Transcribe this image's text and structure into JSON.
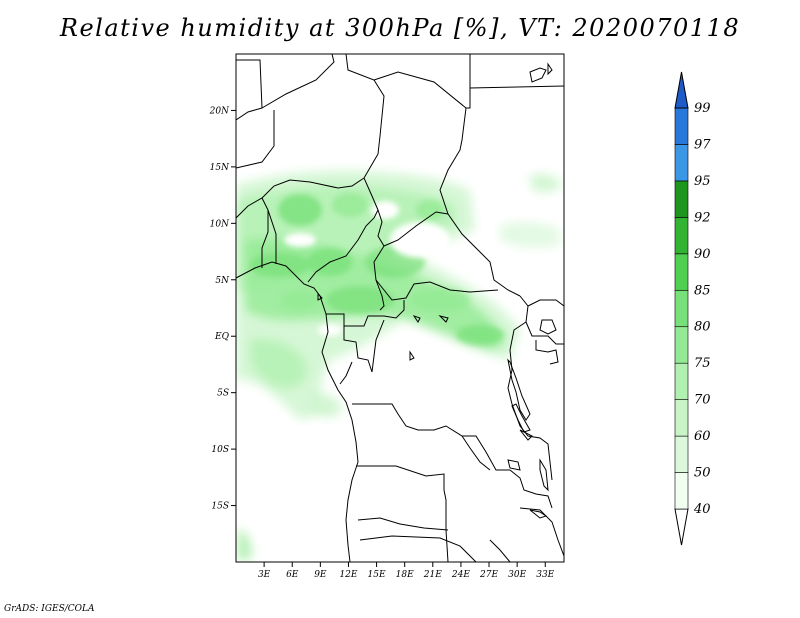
{
  "title": "Relative humidity at 300hPa [%], VT: 2020070118",
  "credit": "GrADS: IGES/COLA",
  "map": {
    "lon_range": [
      0,
      35
    ],
    "lat_range": [
      -20,
      25
    ],
    "lat_ticks": [
      {
        "value": 20,
        "label": "20N"
      },
      {
        "value": 15,
        "label": "15N"
      },
      {
        "value": 10,
        "label": "10N"
      },
      {
        "value": 5,
        "label": "5N"
      },
      {
        "value": 0,
        "label": "EQ"
      },
      {
        "value": -5,
        "label": "5S"
      },
      {
        "value": -10,
        "label": "10S"
      },
      {
        "value": -15,
        "label": "15S"
      }
    ],
    "lon_ticks": [
      {
        "value": 3,
        "label": "3E"
      },
      {
        "value": 6,
        "label": "6E"
      },
      {
        "value": 9,
        "label": "9E"
      },
      {
        "value": 12,
        "label": "12E"
      },
      {
        "value": 15,
        "label": "15E"
      },
      {
        "value": 18,
        "label": "18E"
      },
      {
        "value": 21,
        "label": "21E"
      },
      {
        "value": 24,
        "label": "24E"
      },
      {
        "value": 27,
        "label": "27E"
      },
      {
        "value": 30,
        "label": "30E"
      },
      {
        "value": 33,
        "label": "33E"
      }
    ]
  },
  "colorbar": {
    "bins": [
      {
        "label": "40",
        "color": "#f0fff0"
      },
      {
        "label": "50",
        "color": "#dcf8dc"
      },
      {
        "label": "60",
        "color": "#c8f4c8"
      },
      {
        "label": "70",
        "color": "#b0f0b0"
      },
      {
        "label": "75",
        "color": "#94ea94"
      },
      {
        "label": "80",
        "color": "#78e078"
      },
      {
        "label": "85",
        "color": "#50d050"
      },
      {
        "label": "90",
        "color": "#32b432"
      },
      {
        "label": "92",
        "color": "#1e961e"
      },
      {
        "label": "95",
        "color": "#3c96e6"
      },
      {
        "label": "97",
        "color": "#2878dc"
      },
      {
        "label": "99",
        "color": "#1e5ac8"
      }
    ]
  }
}
